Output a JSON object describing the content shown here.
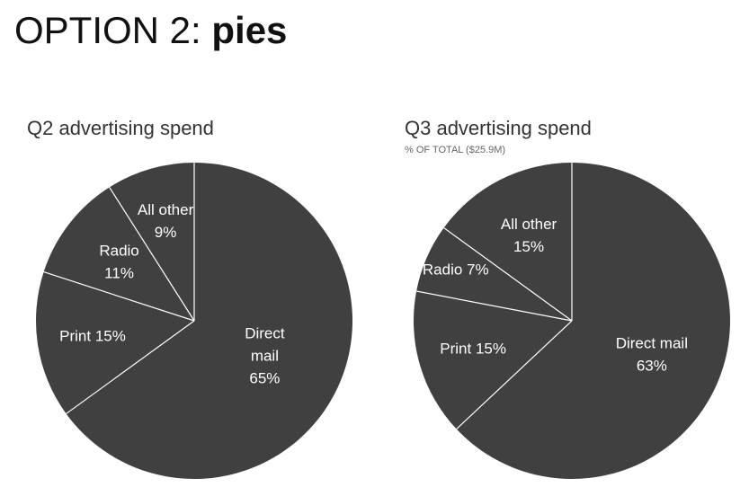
{
  "heading": {
    "prefix": "OPTION 2: ",
    "emphasis": "pies"
  },
  "chart_data": [
    {
      "type": "pie",
      "title": "Q2 advertising spend",
      "subtitle": "",
      "slice_color": "#404040",
      "divider_color": "#ffffff",
      "label_color": "#ffffff",
      "slices": [
        {
          "name": "Direct mail",
          "value": 65,
          "label_lines": [
            "Direct",
            "mail",
            "65%"
          ]
        },
        {
          "name": "Print",
          "value": 15,
          "label_lines": [
            "Print 15%"
          ]
        },
        {
          "name": "Radio",
          "value": 11,
          "label_lines": [
            "Radio",
            "11%"
          ]
        },
        {
          "name": "All other",
          "value": 9,
          "label_lines": [
            "All other",
            "9%"
          ]
        }
      ]
    },
    {
      "type": "pie",
      "title": "Q3 advertising spend",
      "subtitle": "% OF TOTAL ($25.9M)",
      "slice_color": "#404040",
      "divider_color": "#ffffff",
      "label_color": "#ffffff",
      "slices": [
        {
          "name": "Direct mail",
          "value": 63,
          "label_lines": [
            "Direct mail",
            "63%"
          ]
        },
        {
          "name": "Print",
          "value": 15,
          "label_lines": [
            "Print 15%"
          ]
        },
        {
          "name": "Radio",
          "value": 7,
          "label_lines": [
            "Radio 7%"
          ]
        },
        {
          "name": "All other",
          "value": 15,
          "label_lines": [
            "All other",
            "15%"
          ]
        }
      ]
    }
  ]
}
